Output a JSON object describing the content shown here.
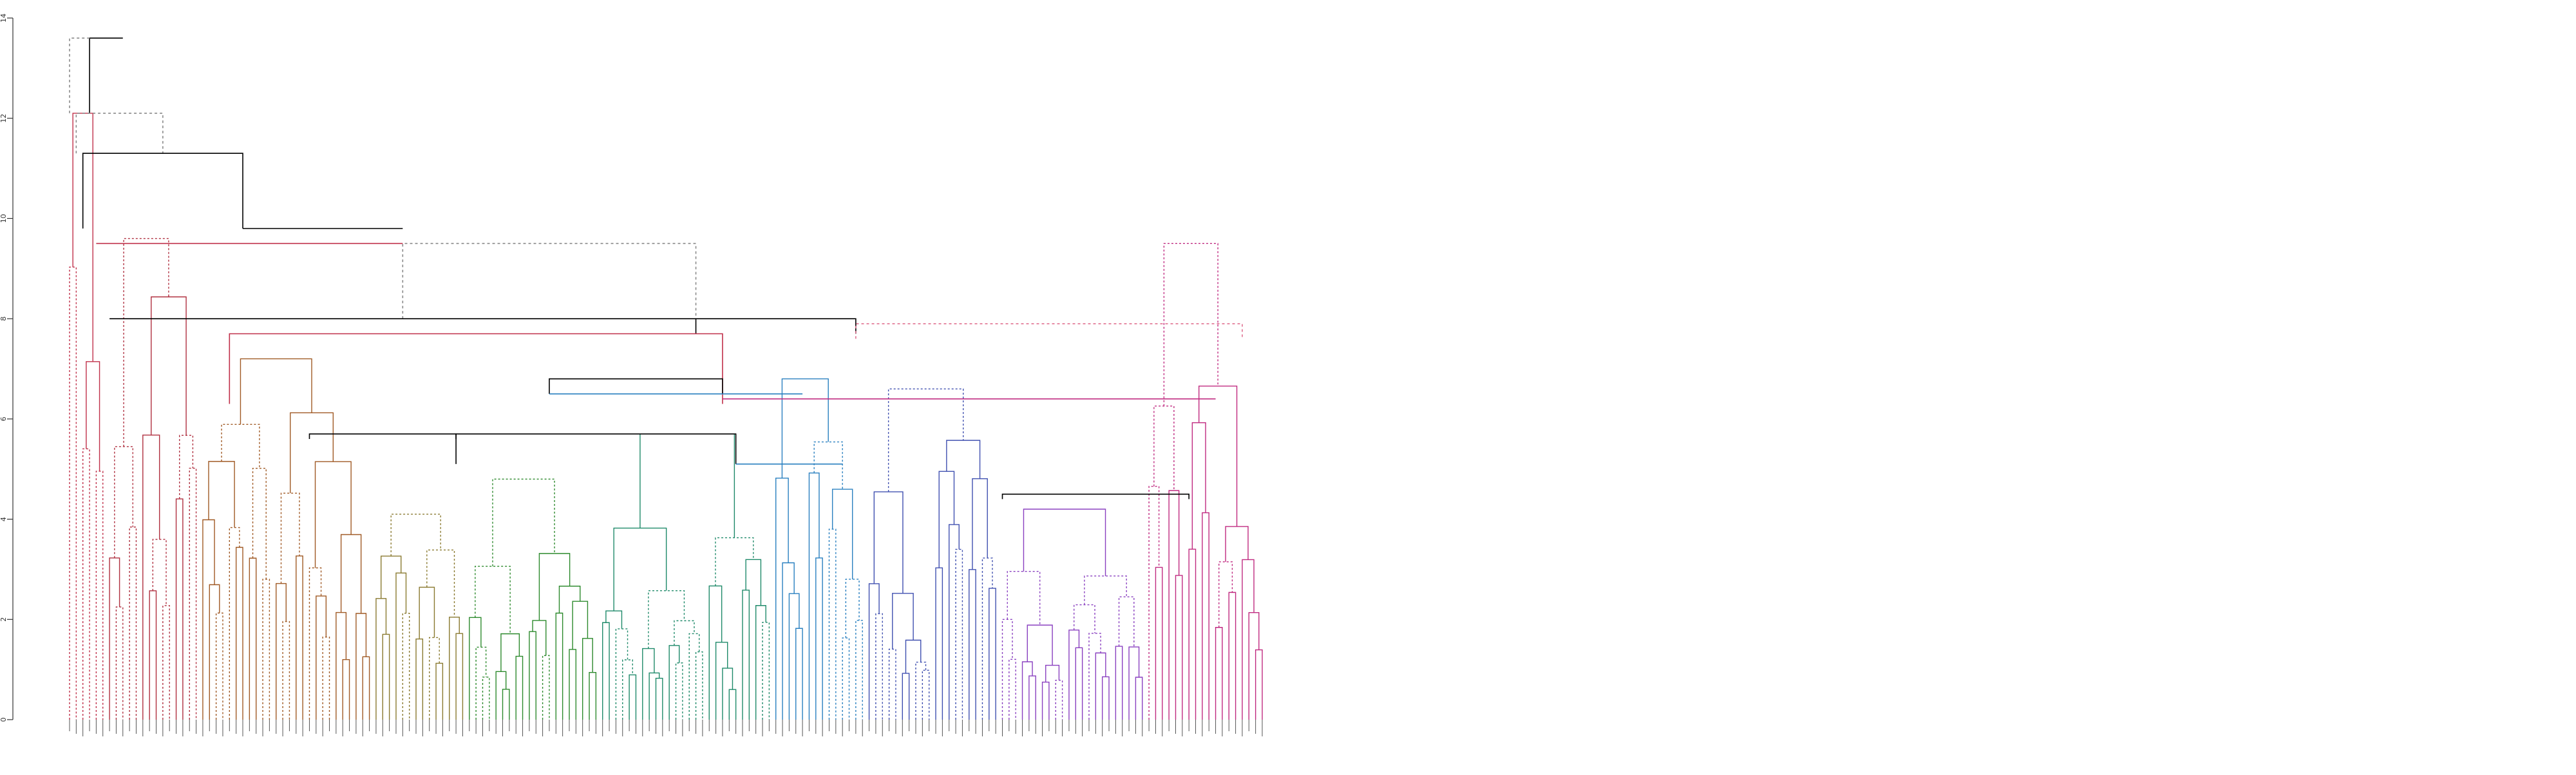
{
  "chart_data": {
    "type": "dendrogram",
    "title": "",
    "xlabel": "",
    "ylabel": "",
    "ylim": [
      0,
      14
    ],
    "y_ticks": [
      0,
      2,
      4,
      6,
      8,
      10,
      12,
      14
    ],
    "grid": false,
    "legend": "none",
    "leaf_count": 180,
    "styles": {
      "solid_black": "#000000",
      "dashed_grey": "#8a8a8a",
      "dashed_pink": "#e07090"
    },
    "clusters": [
      {
        "name": "",
        "color": "#c0304a",
        "leaves": [
          0,
          6
        ],
        "height": 12.1
      },
      {
        "name": "",
        "color": "#b03040",
        "leaves": [
          6,
          20
        ],
        "height": 9.6
      },
      {
        "name": "",
        "color": "#a05a25",
        "leaves": [
          20,
          46
        ],
        "height": 7.2
      },
      {
        "name": "",
        "color": "#8a7a30",
        "leaves": [
          46,
          60
        ],
        "height": 4.1
      },
      {
        "name": "",
        "color": "#2d8a2d",
        "leaves": [
          60,
          80
        ],
        "height": 4.8
      },
      {
        "name": "",
        "color": "#1f8a6a",
        "leaves": [
          80,
          106
        ],
        "height": 5.7
      },
      {
        "name": "",
        "color": "#2a80c0",
        "leaves": [
          106,
          120
        ],
        "height": 6.8
      },
      {
        "name": "",
        "color": "#4050b0",
        "leaves": [
          120,
          140
        ],
        "height": 6.6
      },
      {
        "name": "",
        "color": "#8a40c0",
        "leaves": [
          140,
          162
        ],
        "height": 4.2
      },
      {
        "name": "",
        "color": "#c02a80",
        "leaves": [
          162,
          180
        ],
        "height": 9.5
      }
    ],
    "upper_links": [
      {
        "x1": 3.0,
        "x2": 8.0,
        "h1": 12.1,
        "h2": 13.6,
        "h": 13.6,
        "style": "solid_black"
      },
      {
        "x1": 0.0,
        "x2": 3.0,
        "h1": 12.1,
        "h2": 13.6,
        "h": 13.6,
        "style": "dashed_grey"
      },
      {
        "x1": 1.0,
        "x2": 14.0,
        "h1": 11.3,
        "h2": 11.3,
        "h": 12.1,
        "style": "dashed_grey"
      },
      {
        "x1": 2.0,
        "x2": 26.0,
        "h1": 9.8,
        "h2": 9.8,
        "h": 11.3,
        "style": "solid_black"
      },
      {
        "x1": 26.0,
        "x2": 50.0,
        "h1": 9.8,
        "h2": 9.8,
        "h": 9.8,
        "style": "solid_black"
      },
      {
        "x1": 4.0,
        "x2": 50.0,
        "h1": 9.5,
        "h2": 9.5,
        "h": 9.5,
        "style": "solid_red"
      },
      {
        "x1": 50.0,
        "x2": 94.0,
        "h1": 8.0,
        "h2": 8.0,
        "h": 9.5,
        "style": "dashed_grey"
      },
      {
        "x1": 6.0,
        "x2": 94.0,
        "h1": 8.0,
        "h2": 8.0,
        "h": 8.0,
        "style": "solid_black"
      },
      {
        "x1": 94.0,
        "x2": 118.0,
        "h1": 7.7,
        "h2": 7.7,
        "h": 8.0,
        "style": "solid_black"
      },
      {
        "x1": 118.0,
        "x2": 176.0,
        "h1": 7.6,
        "h2": 7.6,
        "h": 7.9,
        "style": "dashed_pink"
      },
      {
        "x1": 24.0,
        "x2": 98.0,
        "h1": 6.3,
        "h2": 6.3,
        "h": 7.7,
        "style": "solid_red"
      },
      {
        "x1": 98.0,
        "x2": 172.0,
        "h1": 6.4,
        "h2": 6.4,
        "h": 6.4,
        "style": "solid_magenta"
      },
      {
        "x1": 72.0,
        "x2": 98.0,
        "h1": 6.5,
        "h2": 6.5,
        "h": 6.8,
        "style": "solid_black"
      },
      {
        "x1": 72.0,
        "x2": 110.0,
        "h1": 6.5,
        "h2": 6.5,
        "h": 6.5,
        "style": "solid_blue"
      },
      {
        "x1": 36.0,
        "x2": 58.0,
        "h1": 5.6,
        "h2": 5.6,
        "h": 5.7,
        "style": "solid_black"
      },
      {
        "x1": 58.0,
        "x2": 100.0,
        "h1": 5.1,
        "h2": 5.1,
        "h": 5.7,
        "style": "solid_black"
      },
      {
        "x1": 100.0,
        "x2": 116.0,
        "h1": 5.1,
        "h2": 5.1,
        "h": 5.1,
        "style": "solid_blue"
      },
      {
        "x1": 140.0,
        "x2": 168.0,
        "h1": 4.4,
        "h2": 4.4,
        "h": 4.5,
        "style": "solid_black"
      }
    ]
  }
}
